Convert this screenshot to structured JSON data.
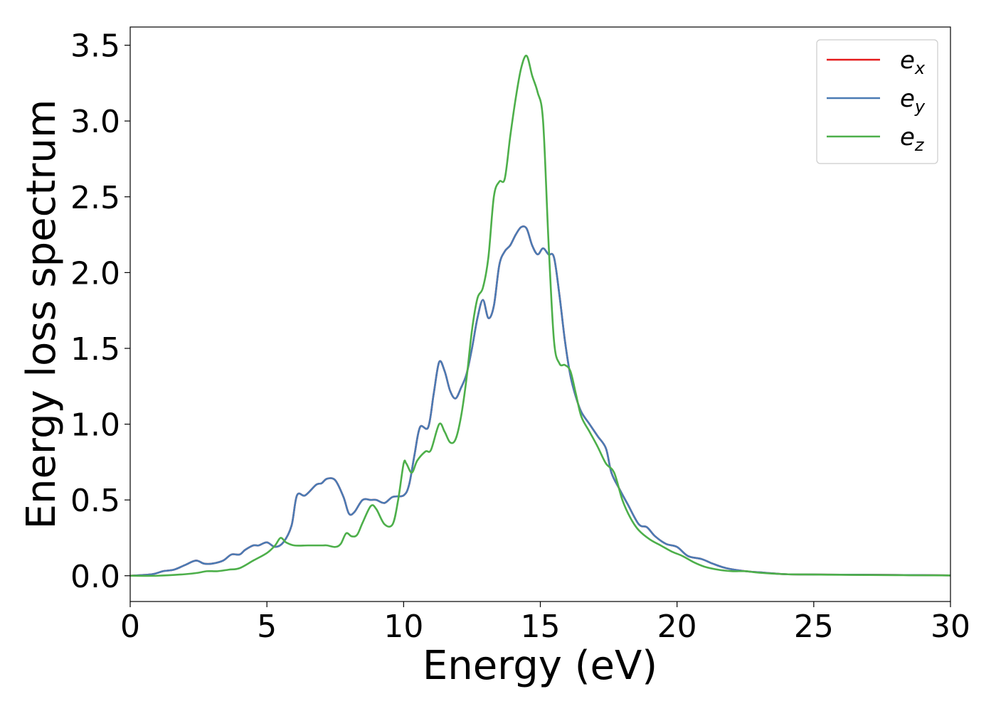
{
  "chart_data": {
    "type": "line",
    "xlabel": "Energy (eV)",
    "ylabel": "Energy loss spectrum",
    "xlim": [
      0,
      30
    ],
    "ylim": [
      -0.17,
      3.62
    ],
    "xticks": [
      0,
      5,
      10,
      15,
      20,
      25,
      30
    ],
    "xtick_labels": [
      "0",
      "5",
      "10",
      "15",
      "20",
      "25",
      "30"
    ],
    "yticks": [
      0.0,
      0.5,
      1.0,
      1.5,
      2.0,
      2.5,
      3.0,
      3.5
    ],
    "ytick_labels": [
      "0.0",
      "0.5",
      "1.0",
      "1.5",
      "2.0",
      "2.5",
      "3.0",
      "3.5"
    ],
    "grid": false,
    "legend_position": "top-right",
    "series": [
      {
        "name": "e_x",
        "base": "e",
        "sub": "x",
        "color": "#e41a1c",
        "x": [
          0,
          0.8,
          1.2,
          1.6,
          2.0,
          2.4,
          2.7,
          3.0,
          3.4,
          3.7,
          4.0,
          4.2,
          4.5,
          4.7,
          5.0,
          5.3,
          5.6,
          5.9,
          6.1,
          6.4,
          6.8,
          7.0,
          7.2,
          7.5,
          7.8,
          8.0,
          8.2,
          8.5,
          8.8,
          9.0,
          9.3,
          9.6,
          10.0,
          10.2,
          10.4,
          10.6,
          10.9,
          11.1,
          11.3,
          11.5,
          11.7,
          11.9,
          12.1,
          12.3,
          12.5,
          12.7,
          12.9,
          13.1,
          13.3,
          13.5,
          13.7,
          13.9,
          14.1,
          14.3,
          14.5,
          14.7,
          14.9,
          15.1,
          15.3,
          15.5,
          15.7,
          15.9,
          16.1,
          16.3,
          16.5,
          16.8,
          17.1,
          17.4,
          17.6,
          17.9,
          18.2,
          18.6,
          18.9,
          19.2,
          19.6,
          20.0,
          20.4,
          20.9,
          21.3,
          21.8,
          22.5,
          23.2,
          24.0,
          25.0,
          26.0,
          27.0,
          28.0,
          29.0,
          30.0
        ],
        "y": [
          0.0,
          0.01,
          0.03,
          0.04,
          0.07,
          0.1,
          0.08,
          0.08,
          0.1,
          0.14,
          0.14,
          0.17,
          0.2,
          0.2,
          0.22,
          0.19,
          0.22,
          0.33,
          0.53,
          0.53,
          0.6,
          0.61,
          0.64,
          0.63,
          0.52,
          0.41,
          0.42,
          0.5,
          0.5,
          0.5,
          0.48,
          0.52,
          0.53,
          0.6,
          0.8,
          0.98,
          0.98,
          1.2,
          1.41,
          1.35,
          1.22,
          1.17,
          1.24,
          1.33,
          1.5,
          1.7,
          1.82,
          1.7,
          1.78,
          2.05,
          2.14,
          2.18,
          2.25,
          2.3,
          2.29,
          2.18,
          2.12,
          2.16,
          2.12,
          2.1,
          1.85,
          1.55,
          1.32,
          1.18,
          1.08,
          1.0,
          0.92,
          0.84,
          0.68,
          0.57,
          0.47,
          0.34,
          0.32,
          0.26,
          0.21,
          0.19,
          0.13,
          0.11,
          0.08,
          0.05,
          0.03,
          0.02,
          0.01,
          0.008,
          0.007,
          0.006,
          0.005,
          0.004,
          0.002
        ]
      },
      {
        "name": "e_y",
        "base": "e",
        "sub": "y",
        "color": "#4a7bb4",
        "x": [
          0,
          0.8,
          1.2,
          1.6,
          2.0,
          2.4,
          2.7,
          3.0,
          3.4,
          3.7,
          4.0,
          4.2,
          4.5,
          4.7,
          5.0,
          5.3,
          5.6,
          5.9,
          6.1,
          6.4,
          6.8,
          7.0,
          7.2,
          7.5,
          7.8,
          8.0,
          8.2,
          8.5,
          8.8,
          9.0,
          9.3,
          9.6,
          10.0,
          10.2,
          10.4,
          10.6,
          10.9,
          11.1,
          11.3,
          11.5,
          11.7,
          11.9,
          12.1,
          12.3,
          12.5,
          12.7,
          12.9,
          13.1,
          13.3,
          13.5,
          13.7,
          13.9,
          14.1,
          14.3,
          14.5,
          14.7,
          14.9,
          15.1,
          15.3,
          15.5,
          15.7,
          15.9,
          16.1,
          16.3,
          16.5,
          16.8,
          17.1,
          17.4,
          17.6,
          17.9,
          18.2,
          18.6,
          18.9,
          19.2,
          19.6,
          20.0,
          20.4,
          20.9,
          21.3,
          21.8,
          22.5,
          23.2,
          24.0,
          25.0,
          26.0,
          27.0,
          28.0,
          29.0,
          30.0
        ],
        "y": [
          0.0,
          0.01,
          0.03,
          0.04,
          0.07,
          0.1,
          0.08,
          0.08,
          0.1,
          0.14,
          0.14,
          0.17,
          0.2,
          0.2,
          0.22,
          0.19,
          0.22,
          0.33,
          0.53,
          0.53,
          0.6,
          0.61,
          0.64,
          0.63,
          0.52,
          0.41,
          0.42,
          0.5,
          0.5,
          0.5,
          0.48,
          0.52,
          0.53,
          0.6,
          0.8,
          0.98,
          0.98,
          1.2,
          1.41,
          1.35,
          1.22,
          1.17,
          1.24,
          1.33,
          1.5,
          1.7,
          1.82,
          1.7,
          1.78,
          2.05,
          2.14,
          2.18,
          2.25,
          2.3,
          2.29,
          2.18,
          2.12,
          2.16,
          2.12,
          2.1,
          1.85,
          1.55,
          1.32,
          1.18,
          1.08,
          1.0,
          0.92,
          0.84,
          0.68,
          0.57,
          0.47,
          0.34,
          0.32,
          0.26,
          0.21,
          0.19,
          0.13,
          0.11,
          0.08,
          0.05,
          0.03,
          0.02,
          0.01,
          0.008,
          0.007,
          0.006,
          0.005,
          0.004,
          0.002
        ]
      },
      {
        "name": "e_z",
        "base": "e",
        "sub": "z",
        "color": "#4daf4a",
        "x": [
          0,
          1.0,
          2.0,
          2.5,
          2.8,
          3.2,
          3.6,
          4.0,
          4.5,
          5.0,
          5.3,
          5.5,
          5.7,
          6.0,
          6.5,
          7.0,
          7.2,
          7.5,
          7.7,
          7.9,
          8.1,
          8.3,
          8.5,
          8.8,
          9.0,
          9.3,
          9.6,
          9.8,
          10.0,
          10.1,
          10.3,
          10.5,
          10.8,
          11.0,
          11.3,
          11.5,
          11.7,
          11.9,
          12.1,
          12.3,
          12.5,
          12.7,
          12.9,
          13.1,
          13.3,
          13.5,
          13.7,
          13.9,
          14.1,
          14.3,
          14.5,
          14.7,
          14.9,
          15.1,
          15.3,
          15.5,
          15.7,
          15.9,
          16.1,
          16.3,
          16.5,
          16.8,
          17.1,
          17.4,
          17.7,
          18.0,
          18.3,
          18.6,
          19.0,
          19.4,
          19.8,
          20.2,
          20.6,
          21.0,
          21.5,
          22.0,
          22.5,
          23.0,
          24.0,
          25.0,
          26.0,
          27.0,
          28.0,
          29.0,
          30.0
        ],
        "y": [
          0.0,
          0.0,
          0.01,
          0.02,
          0.03,
          0.03,
          0.04,
          0.05,
          0.1,
          0.15,
          0.2,
          0.25,
          0.22,
          0.2,
          0.2,
          0.2,
          0.2,
          0.19,
          0.21,
          0.28,
          0.26,
          0.27,
          0.35,
          0.46,
          0.44,
          0.34,
          0.34,
          0.5,
          0.74,
          0.74,
          0.68,
          0.76,
          0.82,
          0.83,
          1.0,
          0.95,
          0.88,
          0.9,
          1.05,
          1.3,
          1.62,
          1.83,
          1.9,
          2.1,
          2.5,
          2.6,
          2.62,
          2.9,
          3.15,
          3.35,
          3.43,
          3.3,
          3.19,
          3.0,
          2.2,
          1.55,
          1.4,
          1.39,
          1.35,
          1.2,
          1.05,
          0.95,
          0.85,
          0.74,
          0.68,
          0.5,
          0.38,
          0.3,
          0.24,
          0.2,
          0.16,
          0.13,
          0.09,
          0.06,
          0.04,
          0.03,
          0.03,
          0.02,
          0.01,
          0.008,
          0.006,
          0.005,
          0.004,
          0.003,
          0.002
        ]
      }
    ]
  }
}
